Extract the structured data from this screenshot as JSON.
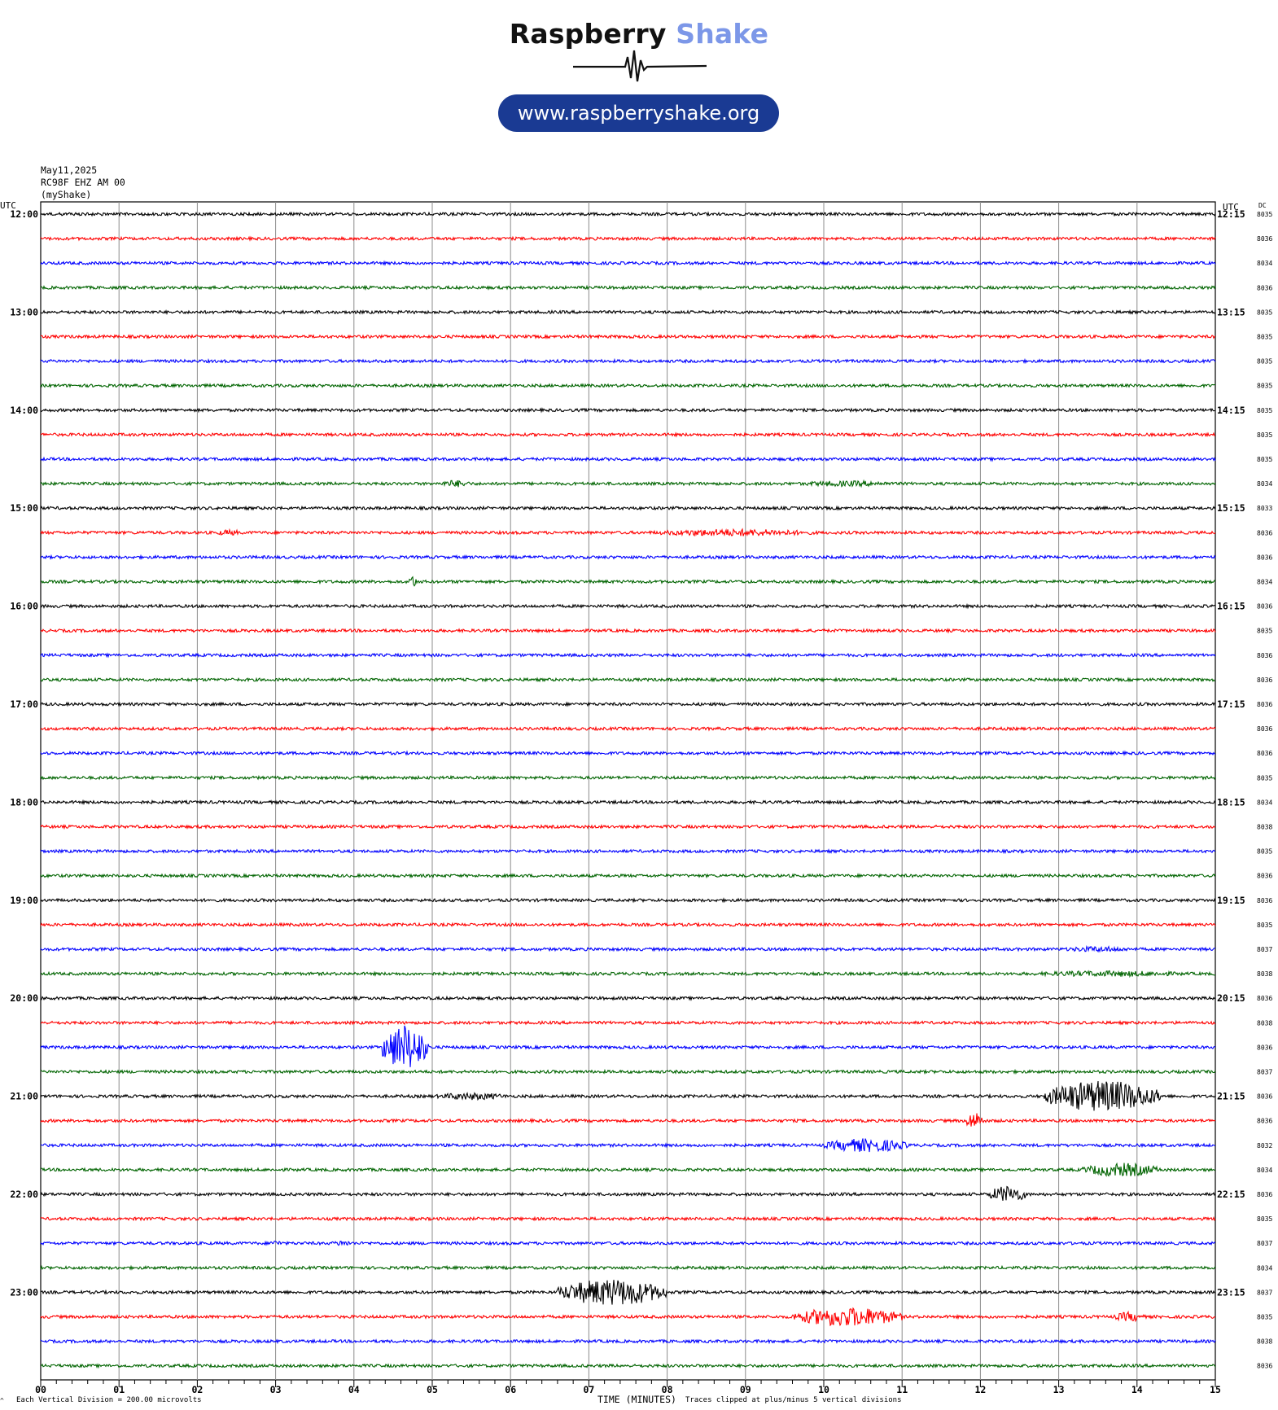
{
  "header": {
    "brand_name_part1": "Raspberry",
    "brand_name_part2": "Shake",
    "brand_accent_color": "#7c97e8",
    "url": "www.raspberryshake.org",
    "url_pill_color": "#1a3a93",
    "logo_icon": "seismograph-wave-icon"
  },
  "meta": {
    "date": "May11,2025",
    "station": "RC98F EHZ AM 00",
    "network": "(myShake)"
  },
  "footer": {
    "division_note": "Each Vertical Division =  200.00 microvolts",
    "x_axis_title": "TIME (MINUTES)",
    "clip_note": "Traces clipped at plus/minus 5 vertical divisions"
  },
  "chart_data": {
    "type": "line",
    "chart_kind": "helicorder",
    "left_axis_header": "UTC",
    "right_axis_header": "UTC",
    "dc_column_header": "DC",
    "x_axis": {
      "label": "TIME (MINUTES)",
      "range": [
        0,
        15
      ],
      "tick_labels": [
        "00",
        "01",
        "02",
        "03",
        "04",
        "05",
        "06",
        "07",
        "08",
        "09",
        "10",
        "11",
        "12",
        "13",
        "14",
        "15"
      ],
      "minor_ticks_per_minute": 5
    },
    "trace_colors": [
      "#000000",
      "#ff0000",
      "#0000ff",
      "#006400"
    ],
    "left_hour_labels": [
      "12:00",
      "13:00",
      "14:00",
      "15:00",
      "16:00",
      "17:00",
      "18:00",
      "19:00",
      "20:00",
      "21:00",
      "22:00",
      "23:00"
    ],
    "right_hour_labels": [
      "12:15",
      "13:15",
      "14:15",
      "15:15",
      "16:15",
      "17:15",
      "18:15",
      "19:15",
      "20:15",
      "21:15",
      "22:15",
      "23:15"
    ],
    "dc_offsets": [
      "8035",
      "8036",
      "8034",
      "8036",
      "8035",
      "8035",
      "8035",
      "8035",
      "8035",
      "8035",
      "8035",
      "8034",
      "8033",
      "8036",
      "8036",
      "8034",
      "8036",
      "8035",
      "8036",
      "8036",
      "8036",
      "8036",
      "8036",
      "8035",
      "8034",
      "8038",
      "8035",
      "8036",
      "8036",
      "8035",
      "8037",
      "8038",
      "8036",
      "8038",
      "8036",
      "8037",
      "8036",
      "8036",
      "8032",
      "8034",
      "8036",
      "8035",
      "8037",
      "8034",
      "8037",
      "8035",
      "8038",
      "8036"
    ],
    "noise_amplitude_divisions": 0.06,
    "events": [
      {
        "trace": 11,
        "start_min": 5.1,
        "end_min": 5.5,
        "amplitude": 0.15
      },
      {
        "trace": 11,
        "start_min": 9.6,
        "end_min": 11.0,
        "amplitude": 0.12
      },
      {
        "trace": 13,
        "start_min": 2.2,
        "end_min": 2.6,
        "amplitude": 0.12
      },
      {
        "trace": 13,
        "start_min": 7.7,
        "end_min": 10.0,
        "amplitude": 0.15
      },
      {
        "trace": 15,
        "start_min": 4.7,
        "end_min": 4.8,
        "amplitude": 0.3
      },
      {
        "trace": 30,
        "start_min": 13.0,
        "end_min": 14.0,
        "amplitude": 0.12
      },
      {
        "trace": 31,
        "start_min": 12.5,
        "end_min": 14.8,
        "amplitude": 0.12
      },
      {
        "trace": 34,
        "start_min": 4.35,
        "end_min": 4.95,
        "amplitude": 0.95
      },
      {
        "trace": 36,
        "start_min": 5.0,
        "end_min": 6.0,
        "amplitude": 0.15
      },
      {
        "trace": 36,
        "start_min": 12.8,
        "end_min": 14.3,
        "amplitude": 0.65
      },
      {
        "trace": 37,
        "start_min": 11.8,
        "end_min": 12.05,
        "amplitude": 0.35
      },
      {
        "trace": 38,
        "start_min": 10.0,
        "end_min": 11.1,
        "amplitude": 0.28
      },
      {
        "trace": 39,
        "start_min": 13.3,
        "end_min": 14.3,
        "amplitude": 0.28
      },
      {
        "trace": 40,
        "start_min": 12.1,
        "end_min": 12.6,
        "amplitude": 0.35
      },
      {
        "trace": 42,
        "start_min": 2.9,
        "end_min": 3.1,
        "amplitude": 0.12
      },
      {
        "trace": 42,
        "start_min": 3.7,
        "end_min": 4.0,
        "amplitude": 0.12
      },
      {
        "trace": 44,
        "start_min": 6.6,
        "end_min": 8.0,
        "amplitude": 0.55
      },
      {
        "trace": 45,
        "start_min": 9.6,
        "end_min": 11.0,
        "amplitude": 0.4
      },
      {
        "trace": 45,
        "start_min": 13.7,
        "end_min": 14.1,
        "amplitude": 0.2
      }
    ]
  }
}
